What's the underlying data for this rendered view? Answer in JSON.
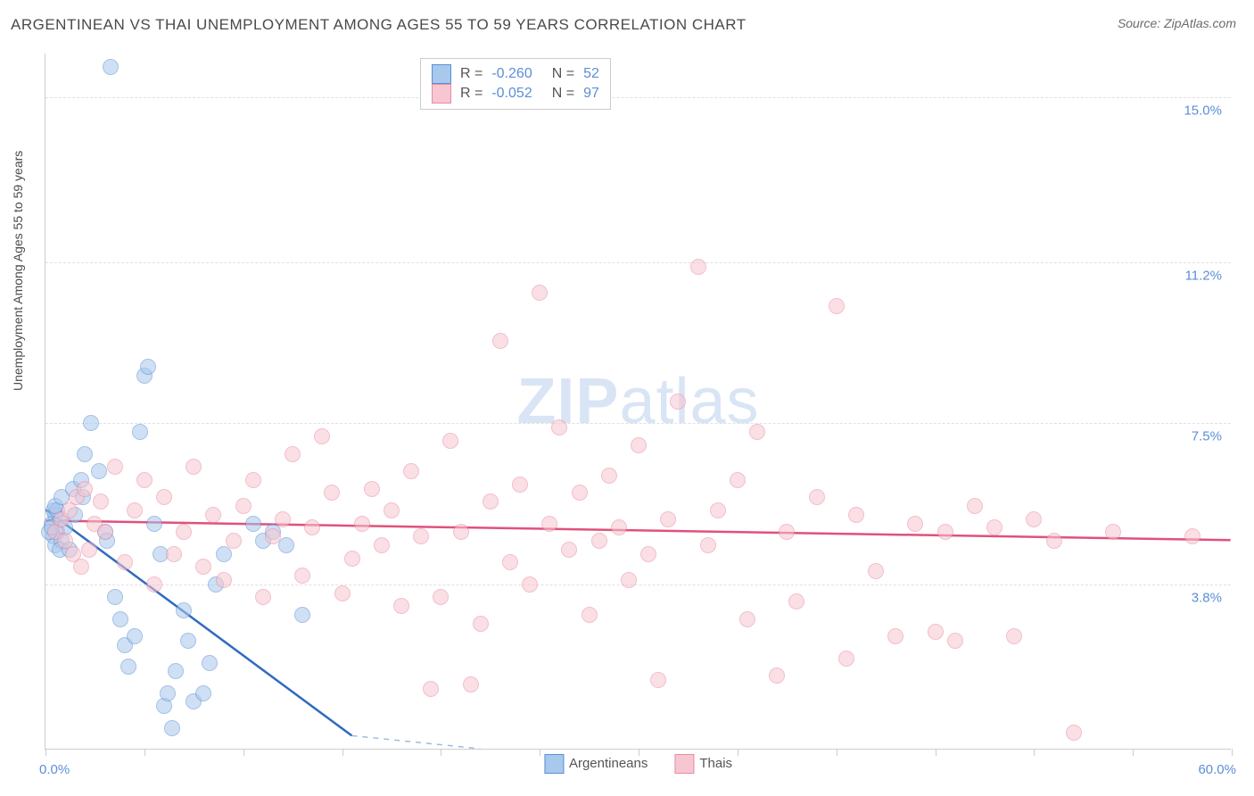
{
  "title": "ARGENTINEAN VS THAI UNEMPLOYMENT AMONG AGES 55 TO 59 YEARS CORRELATION CHART",
  "source": "Source: ZipAtlas.com",
  "watermark": "ZIPatlas",
  "ylabel": "Unemployment Among Ages 55 to 59 years",
  "chart": {
    "type": "scatter",
    "background_color": "#ffffff",
    "grid_color": "#e0e0e0",
    "axis_color": "#cccccc",
    "tick_label_color": "#5b8fd6",
    "text_color": "#4a4a4a",
    "xlim": [
      0,
      60
    ],
    "ylim": [
      0,
      16
    ],
    "x_ticks": [
      0,
      5,
      10,
      15,
      20,
      25,
      30,
      35,
      40,
      45,
      50,
      55,
      60
    ],
    "y_gridlines": [
      3.8,
      7.5,
      11.2,
      15.0
    ],
    "x_labels": [
      {
        "v": 0,
        "t": "0.0%"
      },
      {
        "v": 60,
        "t": "60.0%"
      }
    ],
    "y_labels": [
      {
        "v": 3.8,
        "t": "3.8%"
      },
      {
        "v": 7.5,
        "t": "7.5%"
      },
      {
        "v": 11.2,
        "t": "11.2%"
      },
      {
        "v": 15.0,
        "t": "15.0%"
      }
    ],
    "marker_radius": 9,
    "marker_opacity": 0.55,
    "title_fontsize": 17,
    "label_fontsize": 14,
    "tick_fontsize": 15
  },
  "series": [
    {
      "name": "Argentineans",
      "fill_color": "#a8c8ec",
      "stroke_color": "#5b8fd6",
      "line_color": "#2e6bc0",
      "line_width": 2.5,
      "dash_color": "#9bbce0",
      "R": "-0.260",
      "N": "52",
      "trend": {
        "x1": 0,
        "y1": 5.5,
        "x2": 15.5,
        "y2": 0.3,
        "dash_x2": 22,
        "dash_y2": -2
      },
      "points": [
        [
          0.3,
          5.2
        ],
        [
          0.4,
          4.9
        ],
        [
          0.5,
          5.4
        ],
        [
          0.6,
          5.0
        ],
        [
          0.7,
          5.3
        ],
        [
          0.5,
          4.7
        ],
        [
          0.4,
          5.5
        ],
        [
          0.8,
          4.8
        ],
        [
          0.2,
          5.0
        ],
        [
          0.6,
          5.5
        ],
        [
          0.3,
          5.1
        ],
        [
          0.5,
          5.6
        ],
        [
          0.7,
          4.6
        ],
        [
          0.8,
          5.8
        ],
        [
          1.0,
          5.1
        ],
        [
          1.2,
          4.6
        ],
        [
          1.4,
          6.0
        ],
        [
          1.5,
          5.4
        ],
        [
          1.8,
          6.2
        ],
        [
          1.9,
          5.8
        ],
        [
          2.0,
          6.8
        ],
        [
          2.3,
          7.5
        ],
        [
          2.7,
          6.4
        ],
        [
          3.0,
          5.0
        ],
        [
          3.1,
          4.8
        ],
        [
          3.3,
          15.7
        ],
        [
          3.5,
          3.5
        ],
        [
          3.8,
          3.0
        ],
        [
          4.0,
          2.4
        ],
        [
          4.2,
          1.9
        ],
        [
          4.5,
          2.6
        ],
        [
          4.8,
          7.3
        ],
        [
          5.0,
          8.6
        ],
        [
          5.2,
          8.8
        ],
        [
          5.5,
          5.2
        ],
        [
          5.8,
          4.5
        ],
        [
          6.0,
          1.0
        ],
        [
          6.2,
          1.3
        ],
        [
          6.4,
          0.5
        ],
        [
          6.6,
          1.8
        ],
        [
          7.0,
          3.2
        ],
        [
          7.2,
          2.5
        ],
        [
          7.5,
          1.1
        ],
        [
          8.0,
          1.3
        ],
        [
          8.3,
          2.0
        ],
        [
          8.6,
          3.8
        ],
        [
          9.0,
          4.5
        ],
        [
          10.5,
          5.2
        ],
        [
          11.0,
          4.8
        ],
        [
          11.5,
          5.0
        ],
        [
          12.2,
          4.7
        ],
        [
          13.0,
          3.1
        ]
      ]
    },
    {
      "name": "Thais",
      "fill_color": "#f7c6d1",
      "stroke_color": "#e88ba4",
      "line_color": "#e0517b",
      "line_width": 2.5,
      "R": "-0.052",
      "N": "97",
      "trend": {
        "x1": 0,
        "y1": 5.25,
        "x2": 60,
        "y2": 4.8
      },
      "points": [
        [
          0.5,
          5.0
        ],
        [
          0.8,
          5.3
        ],
        [
          1.0,
          4.8
        ],
        [
          1.2,
          5.5
        ],
        [
          1.4,
          4.5
        ],
        [
          1.6,
          5.8
        ],
        [
          1.8,
          4.2
        ],
        [
          2.0,
          6.0
        ],
        [
          2.2,
          4.6
        ],
        [
          2.5,
          5.2
        ],
        [
          2.8,
          5.7
        ],
        [
          3.0,
          5.0
        ],
        [
          3.5,
          6.5
        ],
        [
          4.0,
          4.3
        ],
        [
          4.5,
          5.5
        ],
        [
          5.0,
          6.2
        ],
        [
          5.5,
          3.8
        ],
        [
          6.0,
          5.8
        ],
        [
          6.5,
          4.5
        ],
        [
          7.0,
          5.0
        ],
        [
          7.5,
          6.5
        ],
        [
          8.0,
          4.2
        ],
        [
          8.5,
          5.4
        ],
        [
          9.0,
          3.9
        ],
        [
          9.5,
          4.8
        ],
        [
          10.0,
          5.6
        ],
        [
          10.5,
          6.2
        ],
        [
          11.0,
          3.5
        ],
        [
          11.5,
          4.9
        ],
        [
          12.0,
          5.3
        ],
        [
          12.5,
          6.8
        ],
        [
          13.0,
          4.0
        ],
        [
          13.5,
          5.1
        ],
        [
          14.0,
          7.2
        ],
        [
          14.5,
          5.9
        ],
        [
          15.0,
          3.6
        ],
        [
          15.5,
          4.4
        ],
        [
          16.0,
          5.2
        ],
        [
          16.5,
          6.0
        ],
        [
          17.0,
          4.7
        ],
        [
          17.5,
          5.5
        ],
        [
          18.0,
          3.3
        ],
        [
          18.5,
          6.4
        ],
        [
          19.0,
          4.9
        ],
        [
          19.5,
          1.4
        ],
        [
          20.0,
          3.5
        ],
        [
          20.5,
          7.1
        ],
        [
          21.0,
          5.0
        ],
        [
          21.5,
          1.5
        ],
        [
          22.0,
          2.9
        ],
        [
          22.5,
          5.7
        ],
        [
          23.0,
          9.4
        ],
        [
          23.5,
          4.3
        ],
        [
          24.0,
          6.1
        ],
        [
          24.5,
          3.8
        ],
        [
          25.0,
          10.5
        ],
        [
          25.5,
          5.2
        ],
        [
          26.0,
          7.4
        ],
        [
          26.5,
          4.6
        ],
        [
          27.0,
          5.9
        ],
        [
          27.5,
          3.1
        ],
        [
          28.0,
          4.8
        ],
        [
          28.5,
          6.3
        ],
        [
          29.0,
          5.1
        ],
        [
          29.5,
          3.9
        ],
        [
          30.0,
          7.0
        ],
        [
          30.5,
          4.5
        ],
        [
          31.0,
          1.6
        ],
        [
          31.5,
          5.3
        ],
        [
          32.0,
          8.0
        ],
        [
          33.0,
          11.1
        ],
        [
          33.5,
          4.7
        ],
        [
          34.0,
          5.5
        ],
        [
          35.0,
          6.2
        ],
        [
          35.5,
          3.0
        ],
        [
          36.0,
          7.3
        ],
        [
          37.0,
          1.7
        ],
        [
          37.5,
          5.0
        ],
        [
          38.0,
          3.4
        ],
        [
          39.0,
          5.8
        ],
        [
          40.0,
          10.2
        ],
        [
          40.5,
          2.1
        ],
        [
          41.0,
          5.4
        ],
        [
          42.0,
          4.1
        ],
        [
          43.0,
          2.6
        ],
        [
          44.0,
          5.2
        ],
        [
          45.0,
          2.7
        ],
        [
          45.5,
          5.0
        ],
        [
          46.0,
          2.5
        ],
        [
          47.0,
          5.6
        ],
        [
          48.0,
          5.1
        ],
        [
          49.0,
          2.6
        ],
        [
          50.0,
          5.3
        ],
        [
          51.0,
          4.8
        ],
        [
          52.0,
          0.4
        ],
        [
          54.0,
          5.0
        ],
        [
          58.0,
          4.9
        ]
      ]
    }
  ],
  "legend_top_labels": {
    "R_prefix": "R = ",
    "N_prefix": "N = "
  },
  "legend_bottom": [
    "Argentineans",
    "Thais"
  ]
}
